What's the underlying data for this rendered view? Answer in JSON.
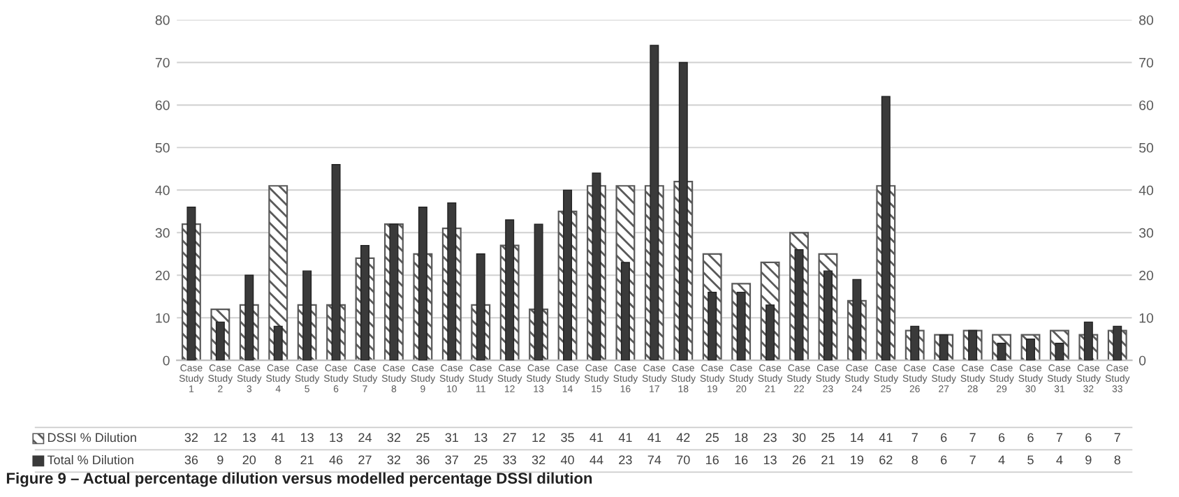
{
  "chart_data": {
    "type": "bar",
    "title": "Figure 9 – Actual percentage dilution versus modelled percentage DSSI dilution",
    "categories": [
      "Case\nStudy\n1",
      "Case\nStudy\n2",
      "Case\nStudy\n3",
      "Case\nStudy\n4",
      "Case\nStudy\n5",
      "Case\nStudy\n6",
      "Case\nStudy\n7",
      "Case\nStudy\n8",
      "Case\nStudy\n9",
      "Case\nStudy\n10",
      "Case\nStudy\n11",
      "Case\nStudy\n12",
      "Case\nStudy\n13",
      "Case\nStudy\n14",
      "Case\nStudy\n15",
      "Case\nStudy\n16",
      "Case\nStudy\n17",
      "Case\nStudy\n18",
      "Case\nStudy\n19",
      "Case\nStudy\n20",
      "Case\nStudy\n21",
      "Case\nStudy\n22",
      "Case\nStudy\n23",
      "Case\nStudy\n24",
      "Case\nStudy\n25",
      "Case\nStudy\n26",
      "Case\nStudy\n27",
      "Case\nStudy\n28",
      "Case\nStudy\n29",
      "Case\nStudy\n30",
      "Case\nStudy\n31",
      "Case\nStudy\n32",
      "Case\nStudy\n33"
    ],
    "series": [
      {
        "name": "DSSI % Dilution",
        "color": "#595959",
        "values": [
          32,
          12,
          13,
          41,
          13,
          13,
          24,
          32,
          25,
          31,
          13,
          27,
          12,
          35,
          41,
          41,
          41,
          42,
          25,
          18,
          23,
          30,
          25,
          14,
          41,
          7,
          6,
          7,
          6,
          6,
          7,
          6,
          7
        ]
      },
      {
        "name": "Total % Dilution",
        "color": "#3a3a3a",
        "values": [
          36,
          9,
          20,
          8,
          21,
          46,
          27,
          32,
          36,
          37,
          25,
          33,
          32,
          40,
          44,
          23,
          74,
          70,
          16,
          16,
          13,
          26,
          21,
          19,
          62,
          8,
          6,
          7,
          4,
          5,
          4,
          9,
          8
        ]
      }
    ],
    "ylim": [
      0,
      80
    ],
    "yticks": [
      0,
      10,
      20,
      30,
      40,
      50,
      60,
      70,
      80
    ],
    "y2lim": [
      0,
      80
    ],
    "y2ticks": [
      0,
      10,
      20,
      30,
      40,
      50,
      60,
      70,
      80
    ],
    "grid": "y",
    "legend": "bottom left",
    "data_labels": true
  }
}
